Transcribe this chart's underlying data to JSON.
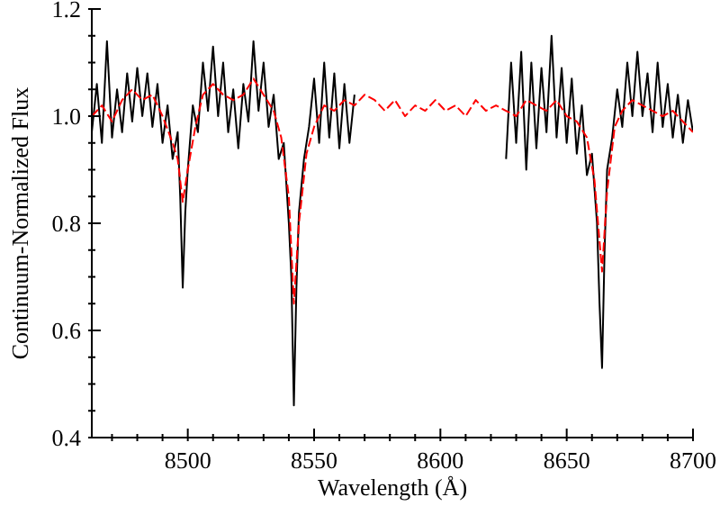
{
  "chart_data": {
    "type": "line",
    "xlabel": "Wavelength (Å)",
    "ylabel": "Continuum-Normalized Flux",
    "xlim": [
      8462,
      8700
    ],
    "ylim": [
      0.4,
      1.2
    ],
    "xticks": [
      {
        "value": 8470,
        "label": null
      },
      {
        "value": 8480,
        "label": null
      },
      {
        "value": 8490,
        "label": null
      },
      8500,
      {
        "value": 8510,
        "label": null
      },
      {
        "value": 8520,
        "label": null
      },
      {
        "value": 8530,
        "label": null
      },
      {
        "value": 8540,
        "label": null
      },
      8550,
      {
        "value": 8560,
        "label": null
      },
      {
        "value": 8570,
        "label": null
      },
      {
        "value": 8580,
        "label": null
      },
      {
        "value": 8590,
        "label": null
      },
      8600,
      {
        "value": 8610,
        "label": null
      },
      {
        "value": 8620,
        "label": null
      },
      {
        "value": 8630,
        "label": null
      },
      {
        "value": 8640,
        "label": null
      },
      8650,
      {
        "value": 8660,
        "label": null
      },
      {
        "value": 8670,
        "label": null
      },
      {
        "value": 8680,
        "label": null
      },
      {
        "value": 8690,
        "label": null
      },
      8700
    ],
    "yticks": [
      0.4,
      {
        "value": 0.45,
        "label": null
      },
      {
        "value": 0.5,
        "label": null
      },
      {
        "value": 0.55,
        "label": null
      },
      0.6,
      {
        "value": 0.65,
        "label": null
      },
      {
        "value": 0.7,
        "label": null
      },
      {
        "value": 0.75,
        "label": null
      },
      0.8,
      {
        "value": 0.85,
        "label": null
      },
      {
        "value": 0.9,
        "label": null
      },
      {
        "value": 0.95,
        "label": null
      },
      {
        "value": 1,
        "label": "1.0"
      },
      {
        "value": 1.05,
        "label": null
      },
      {
        "value": 1.1,
        "label": null
      },
      {
        "value": 1.15,
        "label": null
      },
      1.2
    ],
    "marker": "none",
    "series": [
      {
        "color": "#000000",
        "line_style": "solid",
        "x": [
          8462,
          8464,
          8466,
          8468,
          8470,
          8472,
          8474,
          8476,
          8478,
          8480,
          8482,
          8484,
          8486,
          8488,
          8490,
          8492,
          8494,
          8496,
          8497,
          8498,
          8499,
          8500,
          8502,
          8504,
          8506,
          8508,
          8510,
          8512,
          8514,
          8516,
          8518,
          8520,
          8522,
          8524,
          8526,
          8528,
          8530,
          8532,
          8534,
          8536,
          8538,
          8540,
          8541,
          8542,
          8543,
          8544,
          8546,
          8548,
          8550,
          8552,
          8554,
          8556,
          8558,
          8560,
          8562,
          8564,
          8566,
          8595,
          8626,
          8628,
          8630,
          8632,
          8634,
          8636,
          8638,
          8640,
          8642,
          8644,
          8646,
          8648,
          8650,
          8652,
          8654,
          8656,
          8658,
          8660,
          8662,
          8663,
          8664,
          8665,
          8666,
          8668,
          8670,
          8672,
          8674,
          8676,
          8678,
          8680,
          8682,
          8684,
          8686,
          8688,
          8690,
          8692,
          8694,
          8696,
          8698,
          8700
        ],
        "values": [
          0.97,
          1.06,
          0.95,
          1.14,
          0.96,
          1.05,
          0.97,
          1.08,
          0.99,
          1.09,
          1.0,
          1.08,
          0.98,
          1.06,
          0.95,
          1.02,
          0.92,
          0.97,
          0.85,
          0.68,
          0.82,
          0.9,
          1.02,
          0.97,
          1.1,
          1.01,
          1.13,
          1.0,
          1.1,
          0.97,
          1.05,
          0.94,
          1.06,
          0.99,
          1.14,
          1.01,
          1.1,
          0.98,
          1.04,
          0.92,
          0.95,
          0.8,
          0.7,
          0.46,
          0.68,
          0.82,
          0.92,
          0.98,
          1.07,
          0.95,
          1.1,
          0.96,
          1.08,
          0.94,
          1.06,
          0.95,
          1.04,
          null,
          0.92,
          1.1,
          0.95,
          1.12,
          0.9,
          1.1,
          0.94,
          1.09,
          0.97,
          1.15,
          0.96,
          1.09,
          0.95,
          1.07,
          0.93,
          1.02,
          0.89,
          0.93,
          0.8,
          0.65,
          0.53,
          0.75,
          0.9,
          0.96,
          1.05,
          0.98,
          1.1,
          1.0,
          1.12,
          1.0,
          1.08,
          0.97,
          1.1,
          0.98,
          1.06,
          0.96,
          1.04,
          0.95,
          1.03,
          0.97
        ]
      },
      {
        "color": "#ff0000",
        "line_style": "dashed",
        "x": [
          8462,
          8466,
          8470,
          8474,
          8478,
          8482,
          8486,
          8490,
          8494,
          8496,
          8498,
          8500,
          8503,
          8506,
          8510,
          8514,
          8518,
          8522,
          8526,
          8530,
          8534,
          8537,
          8540,
          8542,
          8544,
          8547,
          8550,
          8554,
          8558,
          8562,
          8566,
          8570,
          8574,
          8578,
          8582,
          8586,
          8590,
          8594,
          8598,
          8602,
          8606,
          8610,
          8614,
          8618,
          8622,
          8626,
          8630,
          8634,
          8638,
          8642,
          8646,
          8650,
          8654,
          8658,
          8661,
          8664,
          8666,
          8669,
          8672,
          8676,
          8680,
          8684,
          8688,
          8692,
          8696,
          8700
        ],
        "values": [
          1.0,
          1.02,
          0.99,
          1.03,
          1.05,
          1.03,
          1.04,
          1.0,
          0.95,
          0.92,
          0.84,
          0.9,
          0.98,
          1.04,
          1.06,
          1.04,
          1.03,
          1.04,
          1.07,
          1.04,
          1.01,
          0.96,
          0.85,
          0.65,
          0.8,
          0.93,
          0.98,
          1.02,
          1.01,
          1.03,
          1.02,
          1.04,
          1.03,
          1.01,
          1.03,
          1.0,
          1.02,
          1.01,
          1.03,
          1.01,
          1.02,
          1.0,
          1.03,
          1.01,
          1.02,
          1.01,
          1.0,
          1.03,
          1.02,
          1.01,
          1.03,
          1.0,
          0.99,
          0.96,
          0.88,
          0.71,
          0.86,
          0.98,
          1.01,
          1.03,
          1.02,
          1.01,
          1.0,
          1.01,
          0.99,
          0.97
        ]
      }
    ]
  }
}
